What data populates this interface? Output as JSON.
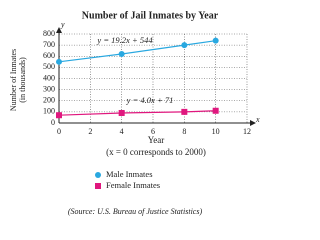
{
  "chart_data": {
    "type": "line",
    "title": "Number of Jail Inmates by Year",
    "ylabel": [
      "Number of Inmates",
      "(in thousands)"
    ],
    "xlabel": "Year",
    "xnote": "(x = 0 corresponds to 2000)",
    "y_axis_letter": "y",
    "x_axis_letter": "x",
    "annotations": [
      "y = 19.2x + 544",
      "y = 4.0x + 71"
    ],
    "source": "(Source: U.S. Bureau of Justice Statistics)",
    "x": [
      0,
      4,
      8,
      10
    ],
    "series": [
      {
        "name": "Male Inmates",
        "color": "#29a8e0",
        "marker": "circle",
        "values": [
          550,
          620,
          700,
          740
        ]
      },
      {
        "name": "Female Inmates",
        "color": "#e0177e",
        "marker": "square",
        "values": [
          70,
          90,
          100,
          110
        ]
      }
    ],
    "xlim": [
      0,
      12
    ],
    "xticks": [
      0,
      2,
      4,
      6,
      8,
      10,
      12
    ],
    "ylim": [
      0,
      800
    ],
    "yticks": [
      0,
      100,
      200,
      300,
      400,
      500,
      600,
      700,
      800
    ],
    "grid": true
  }
}
